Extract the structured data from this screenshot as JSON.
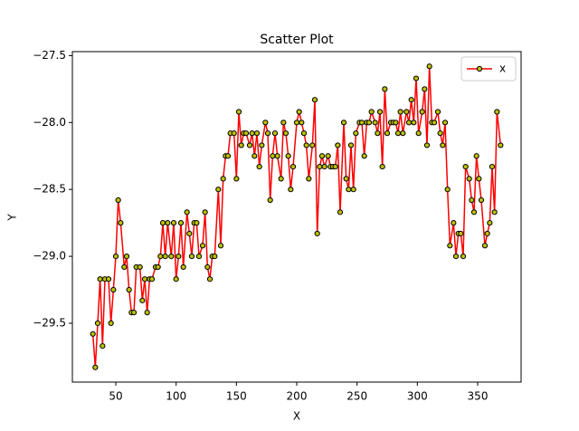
{
  "chart_data": {
    "type": "line",
    "title": "Scatter Plot",
    "xlabel": "X",
    "ylabel": "Y",
    "x": [
      31,
      33,
      35,
      37,
      39,
      41,
      44,
      46,
      48,
      50,
      52,
      54,
      57,
      59,
      61,
      63,
      65,
      67,
      70,
      72,
      74,
      76,
      78,
      80,
      83,
      85,
      87,
      89,
      91,
      93,
      96,
      98,
      100,
      102,
      104,
      106,
      109,
      111,
      113,
      115,
      117,
      119,
      122,
      124,
      126,
      128,
      130,
      132,
      135,
      137,
      139,
      141,
      143,
      145,
      148,
      150,
      152,
      154,
      156,
      158,
      161,
      163,
      165,
      167,
      169,
      171,
      174,
      176,
      178,
      180,
      182,
      184,
      187,
      189,
      191,
      193,
      195,
      197,
      200,
      202,
      204,
      206,
      208,
      210,
      213,
      215,
      217,
      219,
      221,
      223,
      226,
      228,
      230,
      232,
      234,
      236,
      239,
      241,
      243,
      245,
      247,
      249,
      252,
      254,
      256,
      258,
      260,
      262,
      265,
      267,
      269,
      271,
      273,
      275,
      278,
      280,
      282,
      284,
      286,
      288,
      291,
      293,
      295,
      297,
      299,
      301,
      304,
      306,
      308,
      310,
      312,
      314,
      317,
      319,
      321,
      323,
      325,
      327,
      330,
      332,
      334,
      336,
      338,
      340,
      343,
      345,
      347,
      349,
      351,
      353,
      356,
      358,
      360,
      362,
      364,
      366,
      369
    ],
    "series": [
      {
        "name": "x",
        "color": "#ff0000",
        "marker_color": "#bfbf00",
        "marker_edge": "#000000",
        "values": [
          -29.58,
          -29.83,
          -29.5,
          -29.17,
          -29.67,
          -29.17,
          -29.17,
          -29.5,
          -29.25,
          -29.0,
          -28.58,
          -28.75,
          -29.08,
          -29.0,
          -29.25,
          -29.42,
          -29.42,
          -29.08,
          -29.08,
          -29.33,
          -29.17,
          -29.42,
          -29.17,
          -29.17,
          -29.08,
          -29.08,
          -29.0,
          -28.75,
          -29.0,
          -28.75,
          -29.0,
          -28.75,
          -29.17,
          -29.0,
          -28.75,
          -29.08,
          -28.67,
          -28.83,
          -29.0,
          -28.75,
          -28.75,
          -29.0,
          -28.92,
          -28.67,
          -29.08,
          -29.17,
          -29.0,
          -29.0,
          -28.5,
          -28.92,
          -28.42,
          -28.25,
          -28.25,
          -28.08,
          -28.08,
          -28.42,
          -27.92,
          -28.17,
          -28.08,
          -28.08,
          -28.17,
          -28.08,
          -28.25,
          -28.08,
          -28.33,
          -28.17,
          -28.0,
          -28.08,
          -28.58,
          -28.25,
          -28.08,
          -28.25,
          -28.42,
          -28.0,
          -28.08,
          -28.25,
          -28.5,
          -28.33,
          -28.0,
          -27.92,
          -28.0,
          -28.08,
          -28.17,
          -28.42,
          -28.17,
          -27.83,
          -28.83,
          -28.33,
          -28.25,
          -28.33,
          -28.25,
          -28.33,
          -28.33,
          -28.33,
          -28.17,
          -28.67,
          -28.0,
          -28.42,
          -28.5,
          -28.17,
          -28.5,
          -28.08,
          -28.0,
          -28.0,
          -28.25,
          -28.0,
          -28.0,
          -27.92,
          -28.0,
          -28.08,
          -27.92,
          -28.33,
          -27.75,
          -28.08,
          -28.0,
          -28.0,
          -28.0,
          -28.08,
          -27.92,
          -28.08,
          -27.92,
          -28.0,
          -27.83,
          -28.0,
          -27.67,
          -28.08,
          -27.92,
          -27.75,
          -28.17,
          -27.58,
          -28.0,
          -28.0,
          -27.92,
          -28.08,
          -28.17,
          -28.0,
          -28.5,
          -28.92,
          -28.75,
          -29.0,
          -28.83,
          -28.83,
          -29.0,
          -28.33,
          -28.42,
          -28.58,
          -28.67,
          -28.25,
          -28.42,
          -28.58,
          -28.92,
          -28.83,
          -28.75,
          -28.33,
          -28.67,
          -27.92,
          -28.17
        ]
      }
    ],
    "xlim": [
      14,
      386
    ],
    "ylim": [
      -29.94,
      -27.47
    ],
    "xticks": [
      50,
      100,
      150,
      200,
      250,
      300,
      350
    ],
    "yticks": [
      {
        "value": -29.5,
        "label": "−29.5"
      },
      {
        "value": -29.0,
        "label": "−29.0"
      },
      {
        "value": -28.5,
        "label": "−28.5"
      },
      {
        "value": -28.0,
        "label": "−28.0"
      },
      {
        "value": -27.5,
        "label": "−27.5"
      }
    ],
    "legend": "upper right",
    "grid": false
  }
}
